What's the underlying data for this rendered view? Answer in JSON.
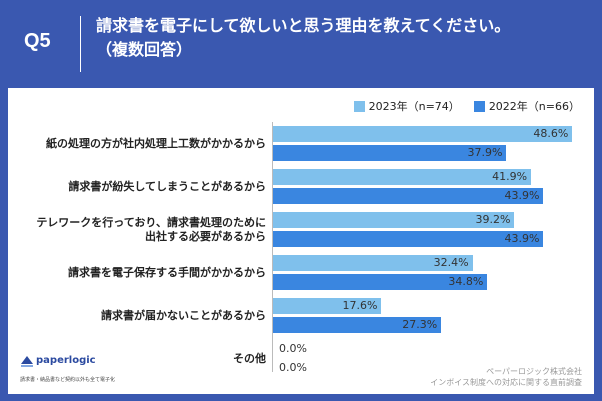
{
  "header": {
    "q_label": "Q5",
    "title_line1": "請求書を電子にして欲しいと思う理由を教えてください。",
    "title_line2": "（複数回答）"
  },
  "colors": {
    "background": "#3a58b0",
    "series_2023": "#7fc0ec",
    "series_2022": "#3a86e0"
  },
  "chart_data": {
    "type": "bar",
    "orientation": "horizontal",
    "legend_position": "top-right",
    "categories": [
      [
        "紙の処理の方が社内処理上工数がかかるから"
      ],
      [
        "請求書が紛失してしまうことがあるから"
      ],
      [
        "テレワークを行っており、請求書処理のために",
        "出社する必要があるから"
      ],
      [
        "請求書を電子保存する手間がかかるから"
      ],
      [
        "請求書が届かないことがあるから"
      ],
      [
        "その他"
      ]
    ],
    "series": [
      {
        "name": "2023年（n=74）",
        "values": [
          48.6,
          41.9,
          39.2,
          32.4,
          17.6,
          0.0
        ],
        "labels": [
          "48.6%",
          "41.9%",
          "39.2%",
          "32.4%",
          "17.6%",
          "0.0%"
        ]
      },
      {
        "name": "2022年（n=66）",
        "values": [
          37.9,
          43.9,
          43.9,
          34.8,
          27.3,
          0.0
        ],
        "labels": [
          "37.9%",
          "43.9%",
          "43.9%",
          "34.8%",
          "27.3%",
          "0.0%"
        ]
      }
    ],
    "xlim": [
      0,
      50
    ]
  },
  "logo": {
    "name": "paperlogic",
    "tagline": "請求書・納品書など契約以外も全て電子化"
  },
  "source": {
    "line1": "ペーパーロジック株式会社",
    "line2": "インボイス制度への対応に関する直前調査"
  }
}
